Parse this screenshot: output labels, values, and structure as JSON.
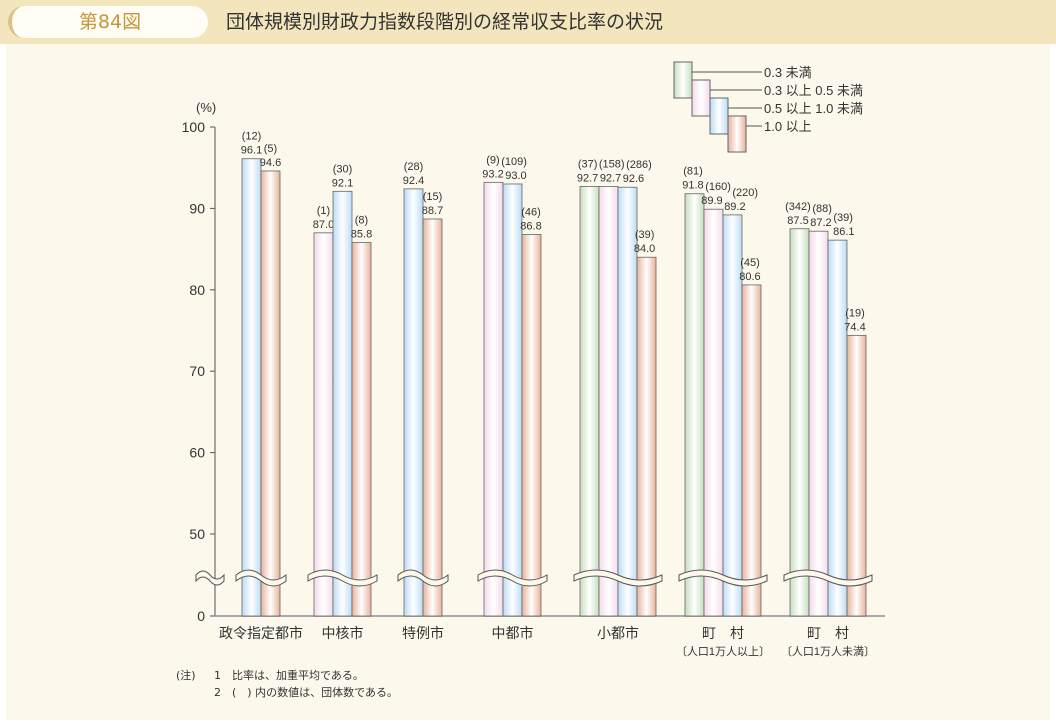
{
  "header": {
    "figure_number": "第84図",
    "title": "団体規模別財政力指数段階別の経常収支比率の状況"
  },
  "chart_data": {
    "type": "bar",
    "title": "団体規模別財政力指数段階別の経常収支比率の状況",
    "ylabel": "(%)",
    "ylim": [
      0,
      100
    ],
    "axis_break": [
      0,
      50
    ],
    "yticks": [
      0,
      50,
      60,
      70,
      80,
      90,
      100
    ],
    "legend_placement": "top-right",
    "legend": [
      {
        "key": "g",
        "label": "0.3 未満",
        "color": "#c6dfbe"
      },
      {
        "key": "p",
        "label": "0.3 以上 0.5 未満",
        "color": "#f4dbea"
      },
      {
        "key": "b",
        "label": "0.5 以上 1.0 未満",
        "color": "#bcdcf6"
      },
      {
        "key": "o",
        "label": "1.0 以上",
        "color": "#e7b39a"
      }
    ],
    "categories": [
      {
        "label": "政令指定都市",
        "sub": "",
        "bars": [
          {
            "key": "b",
            "value": 96.1,
            "count": "(12)"
          },
          {
            "key": "o",
            "value": 94.6,
            "count": "(5)"
          }
        ]
      },
      {
        "label": "中核市",
        "sub": "",
        "bars": [
          {
            "key": "p",
            "value": 87.0,
            "count": "(1)"
          },
          {
            "key": "b",
            "value": 92.1,
            "count": "(30)"
          },
          {
            "key": "o",
            "value": 85.8,
            "count": "(8)"
          }
        ]
      },
      {
        "label": "特例市",
        "sub": "",
        "bars": [
          {
            "key": "b",
            "value": 92.4,
            "count": "(28)"
          },
          {
            "key": "o",
            "value": 88.7,
            "count": "(15)"
          }
        ]
      },
      {
        "label": "中都市",
        "sub": "",
        "bars": [
          {
            "key": "p",
            "value": 93.2,
            "count": "(9)"
          },
          {
            "key": "b",
            "value": 93.0,
            "count": "(109)"
          },
          {
            "key": "o",
            "value": 86.8,
            "count": "(46)"
          }
        ]
      },
      {
        "label": "小都市",
        "sub": "",
        "bars": [
          {
            "key": "g",
            "value": 92.7,
            "count": "(37)"
          },
          {
            "key": "p",
            "value": 92.7,
            "count": "(158)"
          },
          {
            "key": "b",
            "value": 92.6,
            "count": "(286)"
          },
          {
            "key": "o",
            "value": 84.0,
            "count": "(39)"
          }
        ]
      },
      {
        "label": "町　村",
        "sub": "〔人口1万人以上〕",
        "bars": [
          {
            "key": "g",
            "value": 91.8,
            "count": "(81)"
          },
          {
            "key": "p",
            "value": 89.9,
            "count": "(160)"
          },
          {
            "key": "b",
            "value": 89.2,
            "count": "(220)"
          },
          {
            "key": "o",
            "value": 80.6,
            "count": "(45)"
          }
        ]
      },
      {
        "label": "町　村",
        "sub": "〔人口1万人未満〕",
        "bars": [
          {
            "key": "g",
            "value": 87.5,
            "count": "(342)"
          },
          {
            "key": "p",
            "value": 87.2,
            "count": "(88)"
          },
          {
            "key": "b",
            "value": 86.1,
            "count": "(39)"
          },
          {
            "key": "o",
            "value": 74.4,
            "count": "(19)"
          }
        ]
      }
    ]
  },
  "notes": {
    "prefix": "(注)",
    "n1": "1　比率は、加重平均である。",
    "n2": "2　(　) 内の数値は、団体数である。"
  }
}
